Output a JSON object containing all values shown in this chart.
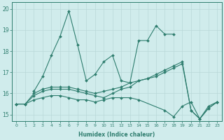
{
  "xlabel": "Humidex (Indice chaleur)",
  "color": "#2e7d6e",
  "bg_color": "#d0ecec",
  "grid_color": "#b8d8d8",
  "ylim": [
    14.7,
    20.3
  ],
  "xlim": [
    -0.5,
    23.5
  ],
  "yticks": [
    15,
    16,
    17,
    18,
    19,
    20
  ],
  "xticks": [
    0,
    1,
    2,
    3,
    4,
    5,
    6,
    7,
    8,
    9,
    10,
    11,
    12,
    13,
    14,
    15,
    16,
    17,
    18,
    19,
    20,
    21,
    22,
    23
  ],
  "line1_x": [
    2,
    3,
    4,
    5,
    6,
    7,
    8,
    9,
    10,
    11,
    12,
    13,
    14,
    15,
    16,
    17,
    18
  ],
  "line1_y": [
    16.1,
    16.8,
    17.8,
    18.7,
    19.9,
    18.3,
    16.6,
    16.9,
    17.5,
    17.8,
    16.6,
    16.5,
    18.5,
    18.5,
    19.2,
    18.8,
    18.8
  ],
  "line2_x": [
    0,
    1,
    2,
    3,
    4,
    5,
    6,
    7,
    8,
    9,
    10,
    11,
    12,
    13,
    14,
    17,
    18,
    19,
    20,
    21,
    22,
    23
  ],
  "line2_y": [
    15.5,
    15.5,
    15.7,
    15.8,
    15.9,
    15.9,
    15.8,
    15.7,
    15.7,
    15.6,
    15.7,
    15.8,
    15.8,
    15.8,
    15.7,
    15.2,
    14.9,
    15.4,
    15.6,
    14.8,
    15.4,
    15.6
  ],
  "line3_x": [
    0,
    1,
    2,
    3,
    4,
    5,
    6,
    7,
    8,
    9,
    10,
    11,
    12,
    13,
    14,
    15,
    16,
    17,
    18,
    19,
    20,
    21,
    22,
    23
  ],
  "line3_y": [
    15.5,
    15.5,
    15.9,
    16.1,
    16.2,
    16.2,
    16.2,
    16.1,
    16.0,
    15.9,
    15.8,
    16.0,
    16.2,
    16.3,
    16.6,
    16.7,
    16.8,
    17.0,
    17.2,
    17.4,
    15.2,
    14.8,
    15.3,
    15.6
  ],
  "line4_x": [
    0,
    1,
    2,
    3,
    4,
    5,
    6,
    7,
    8,
    9,
    10,
    11,
    12,
    13,
    14,
    15,
    16,
    17,
    18,
    19,
    20,
    21,
    22,
    23
  ],
  "line4_y": [
    15.5,
    15.5,
    16.0,
    16.2,
    16.3,
    16.3,
    16.3,
    16.2,
    16.1,
    16.0,
    16.1,
    16.2,
    16.3,
    16.5,
    16.6,
    16.7,
    16.9,
    17.1,
    17.3,
    17.5,
    15.2,
    14.8,
    15.3,
    15.6
  ]
}
